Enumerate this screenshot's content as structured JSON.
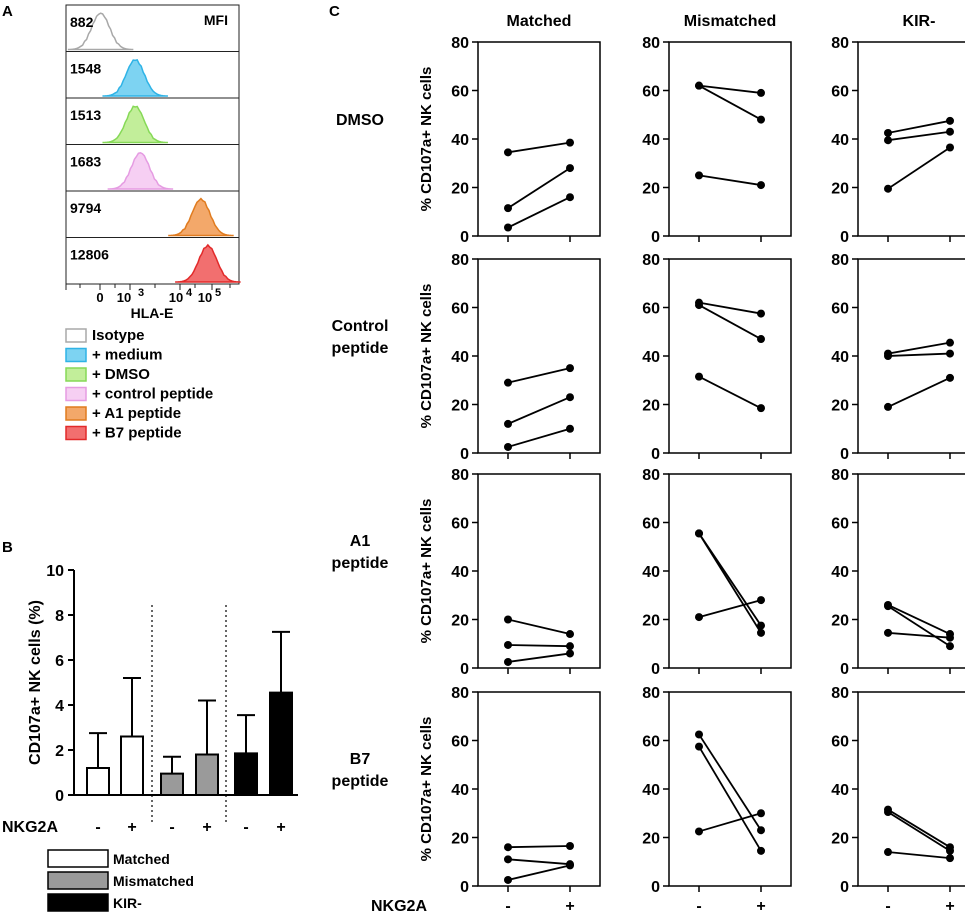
{
  "panels": {
    "a": "A",
    "b": "B",
    "c": "C"
  },
  "histogram": {
    "header": "MFI",
    "xlabel": "HLA-E",
    "ticks": [
      "0",
      "10",
      "3",
      "10",
      "4",
      "10",
      "5"
    ],
    "rows": [
      {
        "mfi": "882",
        "legend": "Isotype",
        "color": "#a8a8a8",
        "fill": "none",
        "peak": 0.2
      },
      {
        "mfi": "1548",
        "legend": "+ medium",
        "color": "#2fb3e6",
        "fill": "#7dd3f2",
        "peak": 0.4
      },
      {
        "mfi": "1513",
        "legend": "+ DMSO",
        "color": "#86d957",
        "fill": "#c2ee9a",
        "peak": 0.4
      },
      {
        "mfi": "1683",
        "legend": "+ control peptide",
        "color": "#e59ce2",
        "fill": "#f6cff3",
        "peak": 0.43
      },
      {
        "mfi": "9794",
        "legend": "+ A1 peptide",
        "color": "#e07b1f",
        "fill": "#f3a86a",
        "peak": 0.78
      },
      {
        "mfi": "12806",
        "legend": "+ B7 peptide",
        "color": "#e22a2a",
        "fill": "#f26f6f",
        "peak": 0.82
      }
    ]
  },
  "chart_data": [
    {
      "type": "bar",
      "title": "",
      "ylabel": "CD107a+ NK cells (%)",
      "ylim": [
        0,
        10
      ],
      "yticks": [
        "0",
        "2",
        "4",
        "6",
        "8",
        "10"
      ],
      "xlabel": "NKG2A",
      "categories": [
        "-",
        "+",
        "-",
        "+",
        "-",
        "+"
      ],
      "values": [
        1.2,
        2.6,
        0.95,
        1.8,
        1.85,
        4.55
      ],
      "errors": [
        1.55,
        2.6,
        0.75,
        2.4,
        1.7,
        2.7
      ],
      "groups": [
        "Matched",
        "Matched",
        "Mismatched",
        "Mismatched",
        "KIR-",
        "KIR-"
      ],
      "legend": [
        {
          "name": "Matched",
          "color": "#ffffff"
        },
        {
          "name": "Mismatched",
          "color": "#9a9a9a"
        },
        {
          "name": "KIR-",
          "color": "#000000"
        }
      ]
    },
    {
      "type": "line",
      "columns": [
        "Matched",
        "Mismatched",
        "KIR-"
      ],
      "rows": [
        {
          "label": "DMSO",
          "series": [
            [
              [
                34.5,
                38.5
              ],
              [
                11.5,
                28
              ],
              [
                3.5,
                16
              ]
            ],
            [
              [
                62,
                59
              ],
              [
                62,
                48
              ],
              [
                25,
                21
              ]
            ],
            [
              [
                42.5,
                47.5
              ],
              [
                39.5,
                43
              ],
              [
                19.5,
                36.5
              ]
            ]
          ]
        },
        {
          "label": "Control peptide",
          "series": [
            [
              [
                29,
                35
              ],
              [
                12,
                23
              ],
              [
                2.5,
                10
              ]
            ],
            [
              [
                62,
                57.5
              ],
              [
                61,
                47
              ],
              [
                31.5,
                18.5
              ]
            ],
            [
              [
                41,
                45.5
              ],
              [
                40,
                41
              ],
              [
                19,
                31
              ]
            ]
          ]
        },
        {
          "label": "A1 peptide",
          "series": [
            [
              [
                20,
                14
              ],
              [
                9.5,
                9
              ],
              [
                2.5,
                6
              ]
            ],
            [
              [
                55.5,
                17.5
              ],
              [
                55.5,
                14.5
              ],
              [
                21,
                28
              ]
            ],
            [
              [
                26,
                14
              ],
              [
                25.5,
                9
              ],
              [
                14.5,
                12.5
              ]
            ]
          ]
        },
        {
          "label": "B7 peptide",
          "series": [
            [
              [
                16,
                16.5
              ],
              [
                11,
                9
              ],
              [
                2.5,
                8.5
              ]
            ],
            [
              [
                62.5,
                23
              ],
              [
                57.5,
                14.5
              ],
              [
                22.5,
                30
              ]
            ],
            [
              [
                31.5,
                16
              ],
              [
                30.5,
                14.5
              ],
              [
                14,
                11.5
              ]
            ]
          ]
        }
      ],
      "ylabel": "% CD107a+ NK cells",
      "ylim": [
        0,
        80
      ],
      "yticks": [
        "0",
        "20",
        "40",
        "60",
        "80"
      ],
      "xlabel": "NKG2A",
      "xticks": [
        "-",
        "+"
      ]
    }
  ]
}
